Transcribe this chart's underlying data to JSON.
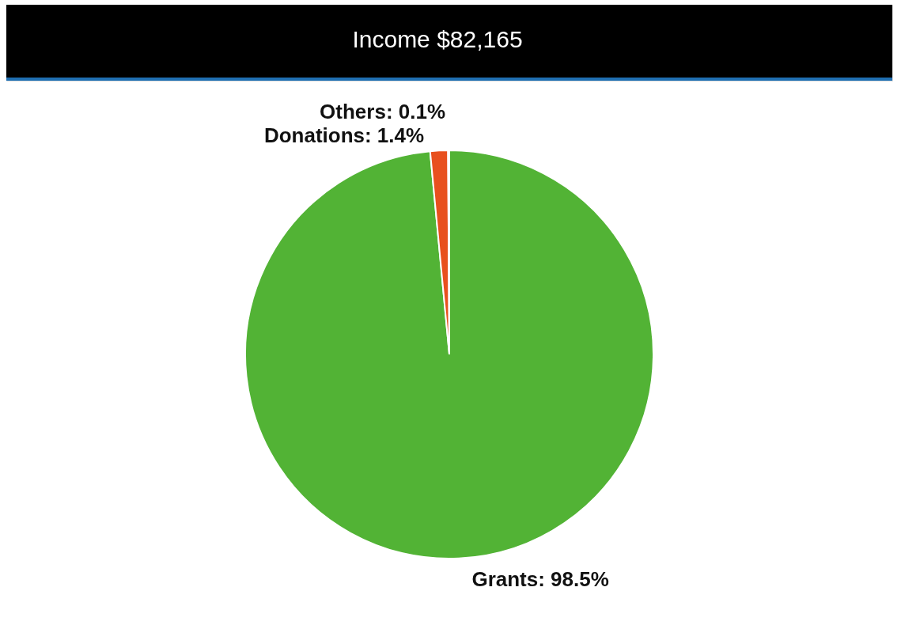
{
  "chart_data": {
    "type": "pie",
    "title": "Income $82,165",
    "categories": [
      "Grants",
      "Donations",
      "Others"
    ],
    "values": [
      98.5,
      1.4,
      0.1
    ],
    "colors": [
      "#52b335",
      "#e8501e",
      "#e3e32a"
    ],
    "value_labels": [
      "98.5%",
      "1.4%",
      "0.1%"
    ],
    "legend": false
  }
}
